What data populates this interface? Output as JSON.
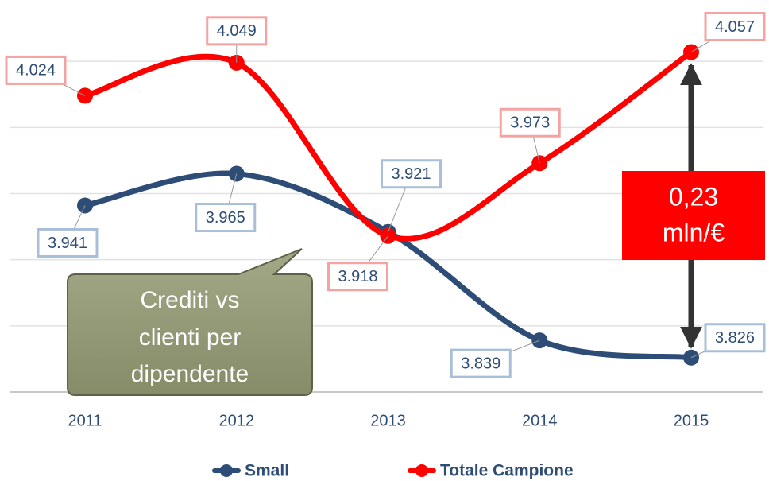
{
  "chart_data": {
    "type": "line",
    "categories": [
      "2011",
      "2012",
      "2013",
      "2014",
      "2015"
    ],
    "series": [
      {
        "name": "Small",
        "color": "#2e4d76",
        "values": [
          3.941,
          3.965,
          3.921,
          3.839,
          3.826
        ]
      },
      {
        "name": "Totale Campione",
        "color": "#ff0000",
        "values": [
          4.024,
          4.049,
          3.918,
          3.973,
          4.057
        ]
      }
    ],
    "ylim": [
      3.8,
      4.1
    ],
    "yticks": [
      3.8,
      3.85,
      3.9,
      3.95,
      4,
      4.05
    ],
    "grid": true,
    "difference_label": [
      "0,23",
      "mln/€"
    ],
    "callout": [
      "Crediti vs",
      "clienti per",
      "dipendente"
    ]
  }
}
